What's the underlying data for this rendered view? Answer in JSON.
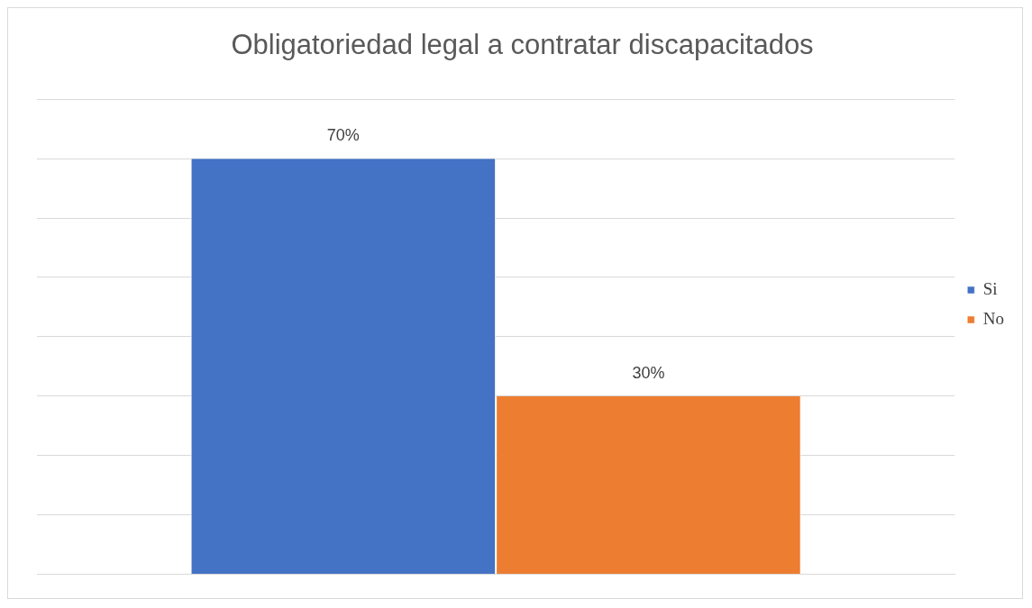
{
  "chart_data": {
    "type": "bar",
    "title": "Obligatoriedad legal a contratar discapacitados",
    "categories": [
      null
    ],
    "series": [
      {
        "name": "Si",
        "color": "#4472c4",
        "values": [
          70
        ],
        "value_labels": [
          "70%"
        ]
      },
      {
        "name": "No",
        "color": "#ed7d31",
        "values": [
          30
        ],
        "value_labels": [
          "30%"
        ]
      }
    ],
    "ylim": [
      0,
      80
    ],
    "yticks": [
      {
        "value": 0,
        "label": null
      },
      {
        "value": 10,
        "label": null
      },
      {
        "value": 20,
        "label": null
      },
      {
        "value": 30,
        "label": null
      },
      {
        "value": 40,
        "label": null
      },
      {
        "value": 50,
        "label": null
      },
      {
        "value": 60,
        "label": null
      },
      {
        "value": 70,
        "label": null
      },
      {
        "value": 80,
        "label": null
      }
    ],
    "grid": "y",
    "legend": "right"
  }
}
